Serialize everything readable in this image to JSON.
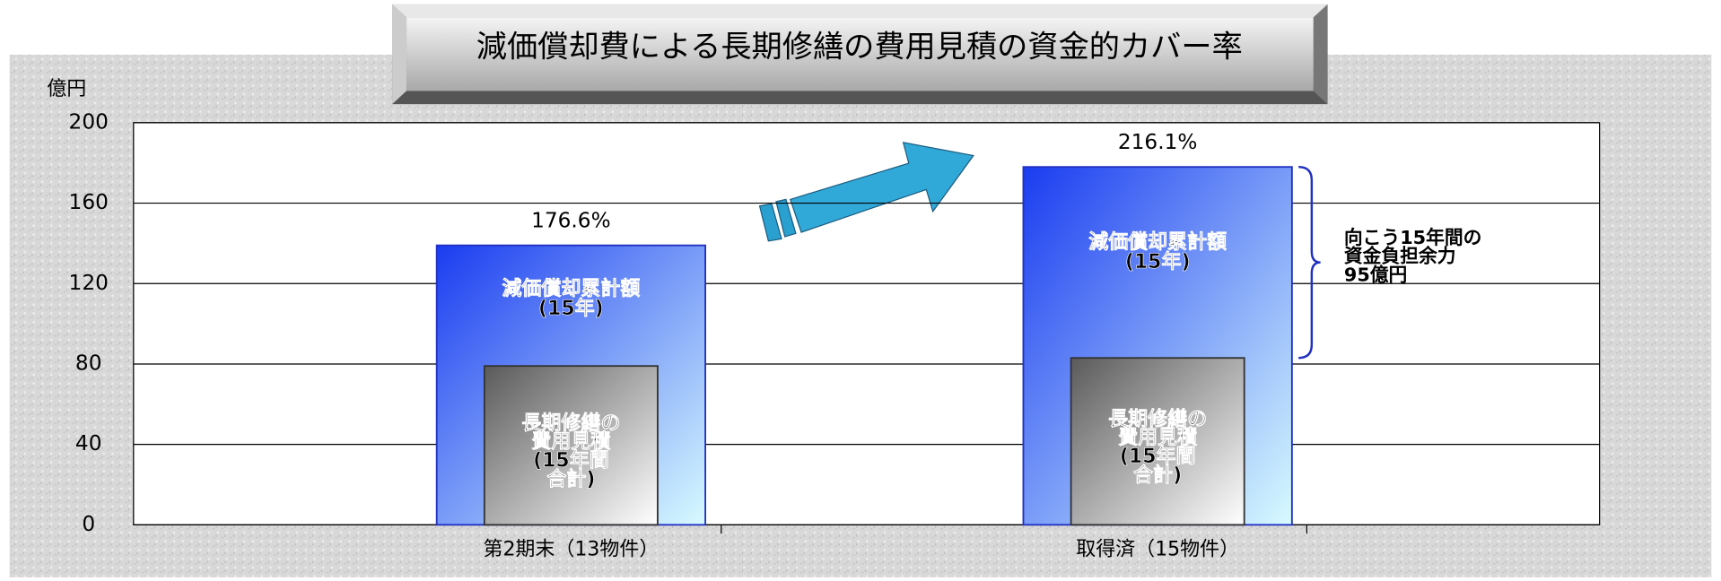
{
  "chart_data": {
    "type": "bar",
    "title": "減価償却費による長期修繕の費用見積の資金的カバー率",
    "y_unit": "億円",
    "categories": [
      "第2期末（13物件）",
      "取得済（15物件）"
    ],
    "series": [
      {
        "name": "減価償却累計額\n(15年)",
        "color": "#1a3cf0",
        "values": [
          139,
          178
        ]
      },
      {
        "name": "長期修繕の\n費用見積\n(15年間\n合計)",
        "color": "#5a5a5a",
        "values": [
          79,
          83
        ]
      }
    ],
    "ratio_labels": [
      "176.6%",
      "216.1%"
    ],
    "annotation": "向こう15年間の\n資金負担余力\n95億円",
    "ylim": [
      0,
      200
    ],
    "yticks": [
      0,
      40,
      80,
      120,
      160,
      200
    ],
    "grid": true
  }
}
